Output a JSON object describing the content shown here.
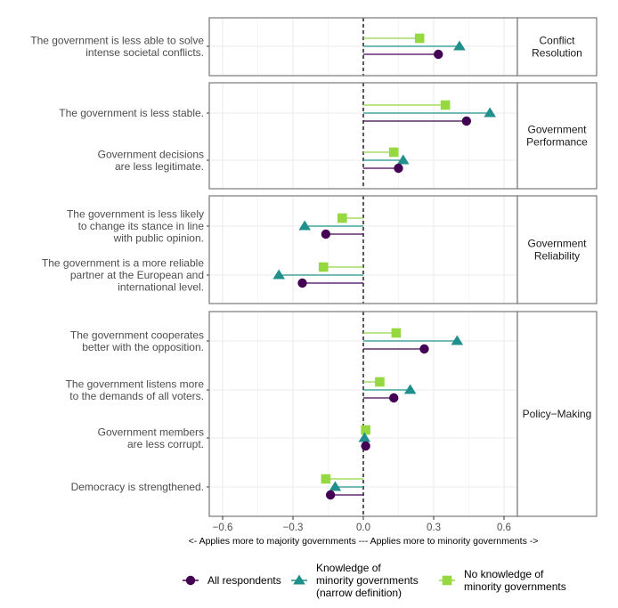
{
  "chart_data": {
    "type": "dot-lollipop",
    "title": "",
    "xlabel": "<- Applies more to majority governments --- Applies more to minority governments ->",
    "ylabel": "",
    "xlim": [
      -0.66,
      0.66
    ],
    "x_ticks": [
      -0.6,
      -0.3,
      0.0,
      0.3,
      0.6
    ],
    "x_tick_labels": [
      "−0.6",
      "−0.3",
      "0.0",
      "0.3",
      "0.6"
    ],
    "reference_line": {
      "x": 0.0,
      "style": "dashed"
    },
    "grid": true,
    "legend_position": "bottom",
    "series": [
      {
        "name": "All respondents",
        "key": "all",
        "color": "#440154",
        "shape": "circle"
      },
      {
        "name": "Knowledge of minority governments (narrow definition)",
        "key": "knowledge",
        "color": "#21908C",
        "shape": "triangle"
      },
      {
        "name": "No knowledge of minority governments",
        "key": "no_knowledge",
        "color": "#95D840",
        "shape": "square"
      }
    ],
    "legend_labels": [
      [
        "All respondents"
      ],
      [
        "Knowledge of",
        "minority governments",
        "(narrow definition)"
      ],
      [
        "No knowledge of",
        "minority governments"
      ]
    ],
    "facets": [
      {
        "name": "Conflict Resolution",
        "strip_lines": [
          "Conflict",
          "Resolution"
        ],
        "items": [
          {
            "label_lines": [
              "The government is less able to solve",
              "intense societal conflicts."
            ],
            "all": 0.32,
            "knowledge": 0.41,
            "no_knowledge": 0.24
          }
        ]
      },
      {
        "name": "Government Performance",
        "strip_lines": [
          "Government",
          "Performance"
        ],
        "items": [
          {
            "label_lines": [
              "The government is less stable."
            ],
            "all": 0.44,
            "knowledge": 0.54,
            "no_knowledge": 0.35
          },
          {
            "label_lines": [
              "Government decisions",
              "are less legitimate."
            ],
            "all": 0.15,
            "knowledge": 0.17,
            "no_knowledge": 0.13
          }
        ]
      },
      {
        "name": "Government Reliability",
        "strip_lines": [
          "Government",
          "Reliability"
        ],
        "items": [
          {
            "label_lines": [
              "The government is less likely",
              "to change its stance in line",
              "with public opinion."
            ],
            "all": -0.16,
            "knowledge": -0.25,
            "no_knowledge": -0.09
          },
          {
            "label_lines": [
              "The government is a more reliable",
              "partner at the European and",
              "international level."
            ],
            "all": -0.26,
            "knowledge": -0.36,
            "no_knowledge": -0.17
          }
        ]
      },
      {
        "name": "Policy−Making",
        "strip_lines": [
          "Policy−Making"
        ],
        "items": [
          {
            "label_lines": [
              "The government cooperates",
              "better with the opposition."
            ],
            "all": 0.26,
            "knowledge": 0.4,
            "no_knowledge": 0.14
          },
          {
            "label_lines": [
              "The government listens more",
              "to the demands of all voters."
            ],
            "all": 0.13,
            "knowledge": 0.2,
            "no_knowledge": 0.07
          },
          {
            "label_lines": [
              "Government members",
              "are less corrupt."
            ],
            "all": 0.01,
            "knowledge": 0.005,
            "no_knowledge": 0.01
          },
          {
            "label_lines": [
              "Democracy is strengthened."
            ],
            "all": -0.14,
            "knowledge": -0.12,
            "no_knowledge": -0.16
          }
        ]
      }
    ]
  }
}
